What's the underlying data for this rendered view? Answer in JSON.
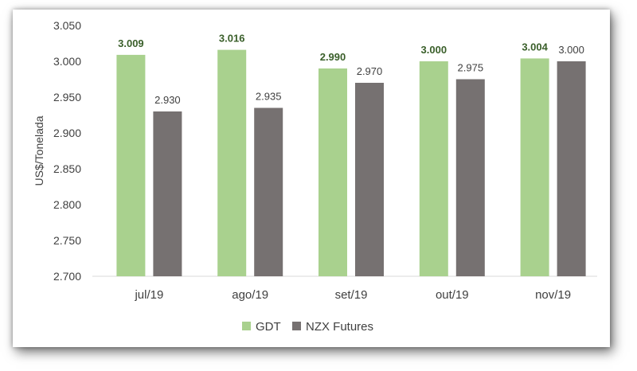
{
  "chart_data": {
    "type": "bar",
    "title": "",
    "xlabel": "",
    "ylabel": "US$/Tonelada",
    "ylim": [
      2700,
      3050
    ],
    "yticks": [
      2700,
      2750,
      2800,
      2850,
      2900,
      2950,
      3000,
      3050
    ],
    "ytick_labels": [
      "2.700",
      "2.750",
      "2.800",
      "2.850",
      "2.900",
      "2.950",
      "3.000",
      "3.050"
    ],
    "categories": [
      "jul/19",
      "ago/19",
      "set/19",
      "out/19",
      "nov/19"
    ],
    "series": [
      {
        "name": "GDT",
        "color": "#a9d18e",
        "label_color": "#3a5f2a",
        "values": [
          3009,
          3016,
          2990,
          3000,
          3004
        ],
        "labels": [
          "3.009",
          "3.016",
          "2.990",
          "3.000",
          "3.004"
        ]
      },
      {
        "name": "NZX Futures",
        "color": "#767171",
        "label_color": "#404040",
        "values": [
          2930,
          2935,
          2970,
          2975,
          3000
        ],
        "labels": [
          "2.930",
          "2.935",
          "2.970",
          "2.975",
          "3.000"
        ]
      }
    ],
    "grid": false,
    "legend": "bottom-center"
  }
}
